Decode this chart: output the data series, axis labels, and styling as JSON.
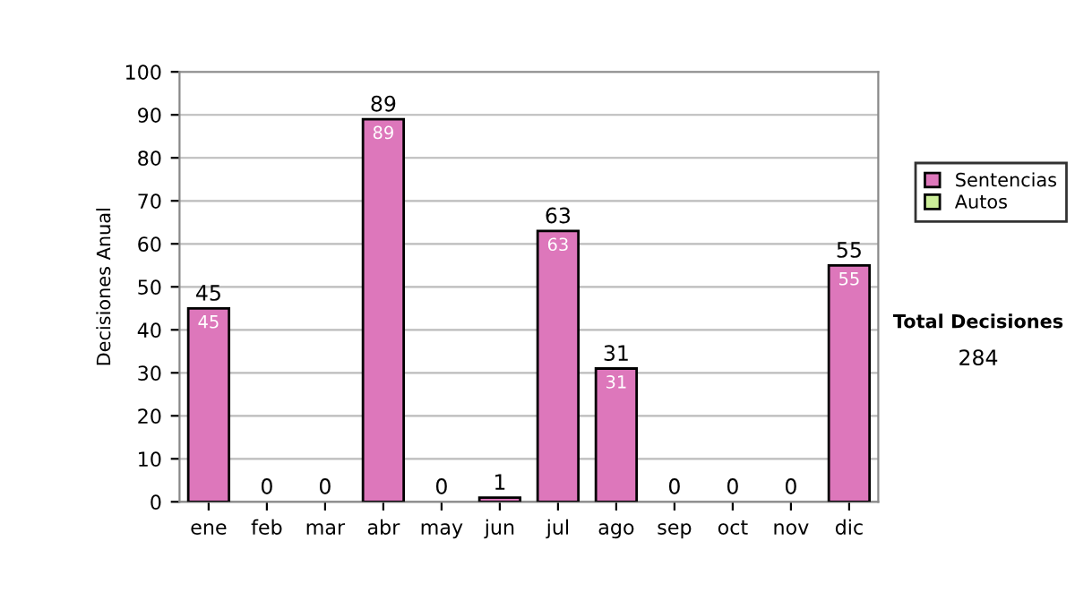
{
  "chart_data": {
    "type": "bar",
    "ylabel": "Decisiones Anual",
    "categories": [
      "ene",
      "feb",
      "mar",
      "abr",
      "may",
      "jun",
      "jul",
      "ago",
      "sep",
      "oct",
      "nov",
      "dic"
    ],
    "series": [
      {
        "name": "Sentencias",
        "color": "#dd77bb",
        "values": [
          45,
          0,
          0,
          89,
          0,
          1,
          63,
          31,
          0,
          0,
          0,
          55
        ],
        "value_labels": [
          "45",
          null,
          null,
          "89",
          null,
          null,
          "63",
          "31",
          null,
          null,
          null,
          "55"
        ]
      },
      {
        "name": "Autos",
        "color": "#ccee99",
        "values": [
          0,
          0,
          0,
          0,
          0,
          0,
          0,
          0,
          0,
          0,
          0,
          0
        ]
      }
    ],
    "stacked": true,
    "totals": [
      "45",
      "0",
      "0",
      "89",
      "0",
      "1",
      "63",
      "31",
      "0",
      "0",
      "0",
      "55"
    ],
    "ylim": [
      0,
      100
    ],
    "yticks": [
      0,
      10,
      20,
      30,
      40,
      50,
      60,
      70,
      80,
      90,
      100
    ],
    "grid": "y",
    "legend": "right",
    "annotations": [
      "Total Decisiones",
      "284"
    ]
  }
}
